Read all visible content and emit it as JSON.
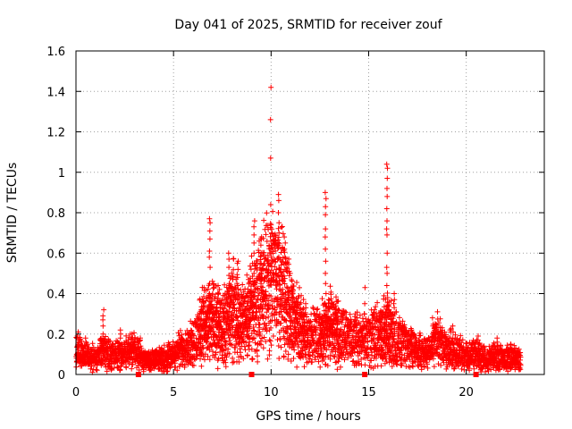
{
  "chart_data": {
    "type": "scatter",
    "title": "Day 041 of 2025, SRMTID for receiver zouf",
    "xlabel": "GPS time / hours",
    "ylabel": "SRMTID / TECUs",
    "xlim": [
      0,
      24
    ],
    "ylim": [
      0,
      1.6
    ],
    "xticks": [
      0,
      5,
      10,
      15,
      20
    ],
    "xtick_labels": [
      "0",
      "5",
      "10",
      "15",
      "20"
    ],
    "yticks": [
      0,
      0.2,
      0.4,
      0.6,
      0.8,
      1.0,
      1.2,
      1.4,
      1.6
    ],
    "ytick_labels": [
      "0",
      "0.2",
      "0.4",
      "0.6",
      "0.8",
      "1",
      "1.2",
      "1.4",
      "1.6"
    ],
    "grid": true,
    "marker": "+",
    "series_color": "#ff0000",
    "gap_markers_x": [
      3.2,
      9.0,
      14.8,
      20.5
    ],
    "envelope": [
      {
        "x": 0.0,
        "y": 0.12
      },
      {
        "x": 0.5,
        "y": 0.09
      },
      {
        "x": 1.0,
        "y": 0.08
      },
      {
        "x": 1.5,
        "y": 0.12
      },
      {
        "x": 2.0,
        "y": 0.09
      },
      {
        "x": 2.5,
        "y": 0.11
      },
      {
        "x": 3.0,
        "y": 0.12
      },
      {
        "x": 3.5,
        "y": 0.07
      },
      {
        "x": 4.0,
        "y": 0.07
      },
      {
        "x": 4.5,
        "y": 0.08
      },
      {
        "x": 5.0,
        "y": 0.1
      },
      {
        "x": 5.5,
        "y": 0.13
      },
      {
        "x": 6.0,
        "y": 0.15
      },
      {
        "x": 6.5,
        "y": 0.24
      },
      {
        "x": 7.0,
        "y": 0.26
      },
      {
        "x": 7.5,
        "y": 0.22
      },
      {
        "x": 8.0,
        "y": 0.32
      },
      {
        "x": 8.5,
        "y": 0.24
      },
      {
        "x": 9.0,
        "y": 0.33
      },
      {
        "x": 9.5,
        "y": 0.4
      },
      {
        "x": 10.0,
        "y": 0.48
      },
      {
        "x": 10.5,
        "y": 0.45
      },
      {
        "x": 11.0,
        "y": 0.3
      },
      {
        "x": 11.5,
        "y": 0.22
      },
      {
        "x": 12.0,
        "y": 0.18
      },
      {
        "x": 12.5,
        "y": 0.2
      },
      {
        "x": 13.0,
        "y": 0.24
      },
      {
        "x": 13.5,
        "y": 0.2
      },
      {
        "x": 14.0,
        "y": 0.17
      },
      {
        "x": 14.5,
        "y": 0.17
      },
      {
        "x": 15.0,
        "y": 0.18
      },
      {
        "x": 15.5,
        "y": 0.2
      },
      {
        "x": 16.0,
        "y": 0.24
      },
      {
        "x": 16.5,
        "y": 0.16
      },
      {
        "x": 17.0,
        "y": 0.14
      },
      {
        "x": 17.5,
        "y": 0.12
      },
      {
        "x": 18.0,
        "y": 0.11
      },
      {
        "x": 18.5,
        "y": 0.17
      },
      {
        "x": 19.0,
        "y": 0.13
      },
      {
        "x": 19.5,
        "y": 0.11
      },
      {
        "x": 20.0,
        "y": 0.09
      },
      {
        "x": 20.5,
        "y": 0.1
      },
      {
        "x": 21.0,
        "y": 0.08
      },
      {
        "x": 21.5,
        "y": 0.09
      },
      {
        "x": 22.0,
        "y": 0.08
      },
      {
        "x": 22.5,
        "y": 0.08
      },
      {
        "x": 22.8,
        "y": 0.07
      }
    ],
    "spikes": [
      {
        "x": 0.1,
        "values": [
          0.21,
          0.19,
          0.17,
          0.15
        ]
      },
      {
        "x": 0.5,
        "values": [
          0.18,
          0.16,
          0.14
        ]
      },
      {
        "x": 1.4,
        "values": [
          0.32,
          0.29,
          0.27,
          0.24,
          0.2
        ]
      },
      {
        "x": 2.3,
        "values": [
          0.22,
          0.2,
          0.18
        ]
      },
      {
        "x": 2.9,
        "values": [
          0.2,
          0.18,
          0.16
        ]
      },
      {
        "x": 3.3,
        "values": [
          0.18,
          0.17
        ]
      },
      {
        "x": 5.4,
        "values": [
          0.18,
          0.16
        ]
      },
      {
        "x": 6.4,
        "values": [
          0.3,
          0.27,
          0.24
        ]
      },
      {
        "x": 6.85,
        "values": [
          0.77,
          0.75,
          0.71,
          0.67,
          0.61,
          0.58,
          0.53,
          0.45,
          0.4,
          0.36
        ]
      },
      {
        "x": 7.3,
        "values": [
          0.44,
          0.4,
          0.36
        ]
      },
      {
        "x": 7.85,
        "values": [
          0.6,
          0.57,
          0.53,
          0.49,
          0.45,
          0.4
        ]
      },
      {
        "x": 8.3,
        "values": [
          0.56,
          0.55,
          0.52,
          0.48,
          0.44
        ]
      },
      {
        "x": 8.8,
        "values": [
          0.4,
          0.38,
          0.36,
          0.32
        ]
      },
      {
        "x": 9.15,
        "values": [
          0.76,
          0.73,
          0.69,
          0.65,
          0.6,
          0.55,
          0.5,
          0.45
        ]
      },
      {
        "x": 9.5,
        "values": [
          0.68,
          0.64,
          0.6,
          0.55,
          0.5,
          0.45
        ]
      },
      {
        "x": 10.0,
        "values": [
          1.42,
          1.26,
          1.07,
          0.84,
          0.74,
          0.7,
          0.66,
          0.6,
          0.55
        ]
      },
      {
        "x": 10.4,
        "values": [
          0.89,
          0.86,
          0.8,
          0.75,
          0.7,
          0.64,
          0.58,
          0.52
        ]
      },
      {
        "x": 10.7,
        "values": [
          0.68,
          0.65,
          0.62,
          0.58,
          0.52
        ]
      },
      {
        "x": 11.1,
        "values": [
          0.42,
          0.38,
          0.34
        ]
      },
      {
        "x": 11.7,
        "values": [
          0.3,
          0.27,
          0.24
        ]
      },
      {
        "x": 12.8,
        "values": [
          0.9,
          0.87,
          0.83,
          0.79,
          0.72,
          0.68,
          0.62,
          0.56,
          0.5,
          0.45,
          0.4
        ]
      },
      {
        "x": 13.3,
        "values": [
          0.34,
          0.31,
          0.28
        ]
      },
      {
        "x": 14.3,
        "values": [
          0.3,
          0.27,
          0.24
        ]
      },
      {
        "x": 14.8,
        "values": [
          0.43,
          0.35,
          0.3
        ]
      },
      {
        "x": 15.3,
        "values": [
          0.32,
          0.28,
          0.25
        ]
      },
      {
        "x": 15.95,
        "values": [
          1.04,
          1.02,
          0.97,
          0.92,
          0.88,
          0.82,
          0.76,
          0.72,
          0.69,
          0.6,
          0.53,
          0.5,
          0.44,
          0.38
        ]
      },
      {
        "x": 16.3,
        "values": [
          0.4,
          0.37,
          0.33,
          0.29
        ]
      },
      {
        "x": 17.2,
        "values": [
          0.22,
          0.2,
          0.18
        ]
      },
      {
        "x": 18.3,
        "values": [
          0.28,
          0.24,
          0.21
        ]
      },
      {
        "x": 19.3,
        "values": [
          0.24,
          0.21,
          0.18
        ]
      },
      {
        "x": 20.6,
        "values": [
          0.19,
          0.17,
          0.15
        ]
      },
      {
        "x": 21.6,
        "values": [
          0.18,
          0.16,
          0.14
        ]
      },
      {
        "x": 22.3,
        "values": [
          0.15,
          0.13,
          0.12
        ]
      }
    ]
  }
}
